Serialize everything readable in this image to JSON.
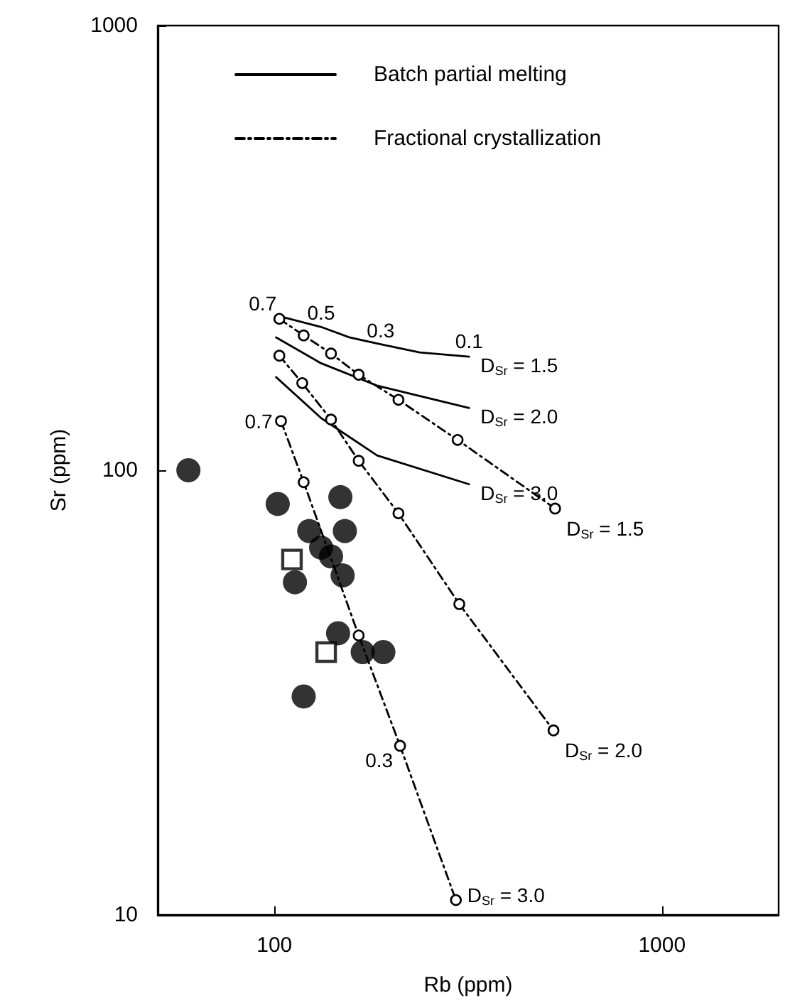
{
  "chart_data": {
    "type": "scatter",
    "xlabel": "Rb (ppm)",
    "ylabel": "Sr (ppm)",
    "log": "xy",
    "xlim": [
      50,
      2000
    ],
    "ylim": [
      10,
      1000
    ],
    "xticks": [
      100,
      1000
    ],
    "yticks": [
      10,
      100,
      1000
    ],
    "grid": false,
    "legend": "top",
    "series": [
      {
        "marker": "circle",
        "color": "#000000",
        "x": [
          60,
          102,
          148,
          152,
          123,
          132,
          140,
          150,
          113,
          146,
          169,
          191,
          119
        ],
        "values": [
          100,
          84,
          87,
          73,
          73,
          67,
          64,
          58,
          56,
          43,
          39,
          39,
          31
        ]
      },
      {
        "marker": "square",
        "color": "#000000",
        "x": [
          111,
          136
        ],
        "values": [
          63,
          39
        ]
      },
      {
        "type": "line",
        "name": "Batch partial melting",
        "marker": "none",
        "line_style": "solid",
        "color": "#000000",
        "x": [
          103,
          132,
          156,
          188,
          237,
          318
        ],
        "values": [
          222,
          210,
          199,
          192,
          184,
          180
        ]
      },
      {
        "type": "line",
        "marker": "none",
        "line_style": "solid",
        "color": "#000000",
        "x": [
          101,
          132,
          184,
          318
        ],
        "values": [
          199,
          174,
          155,
          138
        ]
      },
      {
        "type": "line",
        "marker": "none",
        "line_style": "solid",
        "color": "#000000",
        "x": [
          101,
          132,
          184,
          318
        ],
        "values": [
          162,
          131,
          108,
          93
        ]
      },
      {
        "type": "line",
        "name": "Fractional crystallization",
        "marker": "circle",
        "line_style": "dashed",
        "color": "#000000",
        "x": [
          103,
          119,
          140,
          165,
          209,
          297,
          530
        ],
        "values": [
          219,
          201,
          183,
          164,
          144,
          117,
          82
        ]
      },
      {
        "type": "line",
        "marker": "circle",
        "line_style": "dashed",
        "color": "#000000",
        "x": [
          103,
          118,
          140,
          165,
          209,
          300,
          525
        ],
        "values": [
          181,
          157,
          130,
          105,
          80,
          50,
          26
        ]
      },
      {
        "type": "line",
        "marker": "circle",
        "line_style": "dashed",
        "color": "#000000",
        "x": [
          104,
          119,
          165,
          211,
          294
        ],
        "values": [
          129,
          94,
          42.5,
          24,
          10.8
        ]
      }
    ],
    "annotations": [
      {
        "text": "0.7",
        "x": 103,
        "y": 222
      },
      {
        "text": "0.5",
        "x": 132,
        "y": 210
      },
      {
        "text": "0.3",
        "x": 188,
        "y": 192
      },
      {
        "text": "0.1",
        "x": 318,
        "y": 180
      },
      {
        "text": "0.7",
        "x": 104,
        "y": 129
      },
      {
        "text": "0.3",
        "x": 211,
        "y": 24
      },
      {
        "text": "D$_{Sr}$ = 1.5",
        "x": 318,
        "y": 180
      },
      {
        "text": "D$_{Sr}$ = 2.0",
        "x": 318,
        "y": 138
      },
      {
        "text": "D$_{Sr}$ = 3.0",
        "x": 318,
        "y": 93
      },
      {
        "text": "D$_{Sr}$ = 1.5",
        "x": 530,
        "y": 82
      },
      {
        "text": "D$_{Sr}$ = 2.0",
        "x": 525,
        "y": 26
      },
      {
        "text": "D$_{Sr}$ = 3.0",
        "x": 294,
        "y": 10.8
      }
    ]
  }
}
